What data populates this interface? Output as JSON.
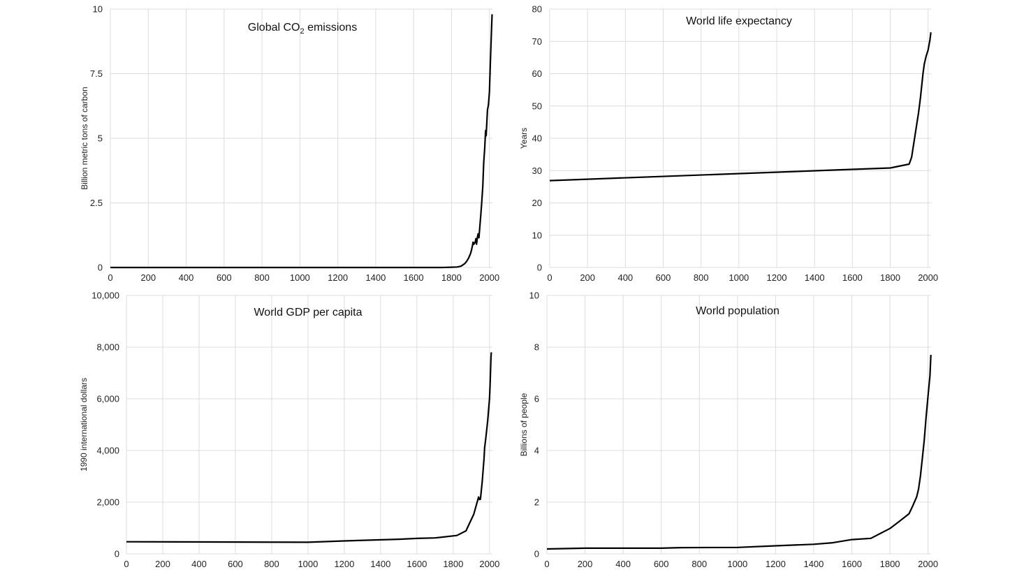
{
  "chart_data": [
    {
      "type": "line",
      "title": "Global CO",
      "title_sub": "2",
      "title_tail": " emissions",
      "ylabel": "Billion metric tons of carbon",
      "xlim": [
        0,
        2016
      ],
      "ylim": [
        0,
        10
      ],
      "xticks": [
        0,
        200,
        400,
        600,
        800,
        1000,
        1200,
        1400,
        1600,
        1800,
        2000
      ],
      "xtick_labels": [
        "0",
        "200",
        "400",
        "600",
        "800",
        "1000",
        "1200",
        "1400",
        "1600",
        "1800",
        "2000"
      ],
      "yticks": [
        0,
        2.5,
        5,
        7.5,
        10
      ],
      "ytick_labels": [
        "0",
        "2.5",
        "5",
        "7.5",
        "10"
      ],
      "grid": true,
      "series": [
        {
          "x": [
            0,
            1750,
            1800,
            1830,
            1850,
            1860,
            1870,
            1880,
            1890,
            1900,
            1905,
            1910,
            1914,
            1918,
            1920,
            1925,
            1929,
            1932,
            1937,
            1940,
            1945,
            1950,
            1955,
            1960,
            1965,
            1970,
            1975,
            1980,
            1983,
            1990,
            1995,
            2000,
            2005,
            2010,
            2014
          ],
          "y": [
            0,
            0,
            0.01,
            0.02,
            0.05,
            0.1,
            0.15,
            0.24,
            0.36,
            0.53,
            0.66,
            0.82,
            0.98,
            0.9,
            0.93,
            0.98,
            1.12,
            0.9,
            1.18,
            1.3,
            1.15,
            1.63,
            2.05,
            2.57,
            3.14,
            4.05,
            4.6,
            5.3,
            5.1,
            6.1,
            6.3,
            6.8,
            7.9,
            9.0,
            9.8
          ]
        }
      ]
    },
    {
      "type": "line",
      "title": "World life expectancy",
      "ylabel": "Years",
      "xlim": [
        0,
        2016
      ],
      "ylim": [
        0,
        80
      ],
      "xticks": [
        0,
        200,
        400,
        600,
        800,
        1000,
        1200,
        1400,
        1600,
        1800,
        2000
      ],
      "xtick_labels": [
        "0",
        "200",
        "400",
        "600",
        "800",
        "1000",
        "1200",
        "1400",
        "1600",
        "1800",
        "2000"
      ],
      "yticks": [
        0,
        10,
        20,
        30,
        40,
        50,
        60,
        70,
        80
      ],
      "ytick_labels": [
        "0",
        "10",
        "20",
        "30",
        "40",
        "50",
        "60",
        "70",
        "80"
      ],
      "grid": true,
      "series": [
        {
          "x": [
            0,
            1800,
            1900,
            1913,
            1950,
            1960,
            1973,
            1980,
            1990,
            2000,
            2010,
            2015
          ],
          "y": [
            26.9,
            30.8,
            32,
            34.1,
            48,
            52.6,
            60,
            63,
            65.5,
            67.3,
            70.5,
            72.8
          ]
        }
      ]
    },
    {
      "type": "line",
      "title": "World GDP per capita",
      "ylabel": "1990 international dollars",
      "xlim": [
        0,
        2016
      ],
      "ylim": [
        0,
        10000
      ],
      "xticks": [
        0,
        200,
        400,
        600,
        800,
        1000,
        1200,
        1400,
        1600,
        1800,
        2000
      ],
      "xtick_labels": [
        "0",
        "200",
        "400",
        "600",
        "800",
        "1000",
        "1200",
        "1400",
        "1600",
        "1800",
        "2000"
      ],
      "yticks": [
        0,
        2000,
        4000,
        6000,
        8000,
        10000
      ],
      "ytick_labels": [
        "0",
        "2,000",
        "4,000",
        "6,000",
        "8,000",
        "10,000"
      ],
      "grid": true,
      "series": [
        {
          "x": [
            0,
            1000,
            1200,
            1500,
            1600,
            1700,
            1820,
            1870,
            1913,
            1940,
            1945,
            1950,
            1960,
            1970,
            1973,
            1980,
            1990,
            2000,
            2003,
            2008,
            2010
          ],
          "y": [
            467,
            450,
            500,
            566,
            596,
            615,
            712,
            889,
            1526,
            2200,
            2100,
            2113,
            2800,
            3700,
            4100,
            4500,
            5150,
            6000,
            6500,
            7600,
            7800
          ]
        }
      ]
    },
    {
      "type": "line",
      "title": "World population",
      "ylabel": "Billions of people",
      "xlim": [
        0,
        2016
      ],
      "ylim": [
        0,
        10
      ],
      "xticks": [
        0,
        200,
        400,
        600,
        800,
        1000,
        1200,
        1400,
        1600,
        1800,
        2000
      ],
      "xtick_labels": [
        "0",
        "200",
        "400",
        "600",
        "800",
        "1000",
        "1200",
        "1400",
        "1600",
        "1800",
        "2000"
      ],
      "yticks": [
        0,
        2,
        4,
        6,
        8,
        10
      ],
      "ytick_labels": [
        "0",
        "2",
        "4",
        "6",
        "8",
        "10"
      ],
      "grid": true,
      "series": [
        {
          "x": [
            0,
            200,
            400,
            600,
            700,
            1000,
            1200,
            1300,
            1400,
            1500,
            1600,
            1700,
            1800,
            1850,
            1900,
            1920,
            1940,
            1950,
            1960,
            1970,
            1980,
            1990,
            2000,
            2010,
            2015
          ],
          "y": [
            0.19,
            0.22,
            0.22,
            0.22,
            0.24,
            0.25,
            0.31,
            0.34,
            0.37,
            0.43,
            0.55,
            0.6,
            0.98,
            1.26,
            1.55,
            1.86,
            2.2,
            2.5,
            3.0,
            3.7,
            4.4,
            5.3,
            6.1,
            6.9,
            7.7
          ]
        }
      ]
    }
  ]
}
